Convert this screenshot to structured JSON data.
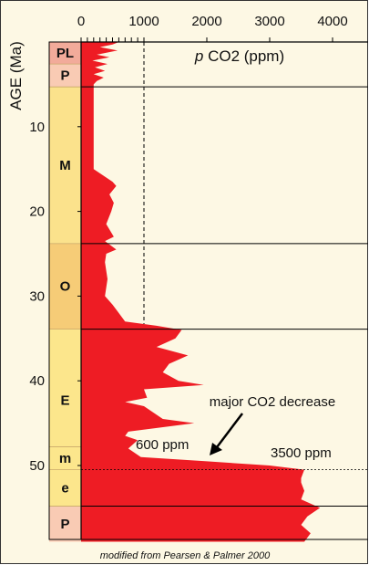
{
  "chart_data": {
    "type": "area",
    "orientation": "vertical-depth",
    "xlabel_prefix": "p",
    "xlabel": "CO2 (ppm)",
    "ylabel": "AGE (Ma)",
    "xlim": [
      0,
      4500
    ],
    "ylim": [
      0,
      59
    ],
    "x_ticks": [
      0,
      1000,
      2000,
      3000,
      4000
    ],
    "y_ticks": [
      10,
      20,
      30,
      40,
      50
    ],
    "grid": "none",
    "fill_color": "#ee1c24",
    "reference_line": {
      "x": 1000,
      "style": "dashed"
    },
    "series": [
      {
        "age": [
          0,
          0.3,
          0.6,
          1,
          1.5,
          1.8,
          2.2,
          2.6,
          3,
          3.4,
          3.8,
          4.2,
          4.6,
          5,
          5.3,
          15,
          16.5,
          17,
          18,
          19,
          20,
          21.5,
          23,
          23.5,
          24.5,
          25,
          26,
          27,
          28,
          30,
          31,
          33,
          33.5,
          34,
          35,
          36,
          37,
          38,
          39,
          40,
          40.5,
          41,
          42,
          42.5,
          43,
          44.5,
          45,
          46,
          46.5,
          47,
          48,
          49,
          49.5,
          50,
          50.5,
          51.5,
          52,
          53,
          54,
          55,
          56,
          57,
          58,
          59
        ],
        "co2": [
          600,
          500,
          300,
          580,
          250,
          450,
          180,
          420,
          220,
          380,
          200,
          360,
          250,
          200,
          200,
          200,
          500,
          560,
          450,
          520,
          480,
          400,
          520,
          380,
          560,
          400,
          380,
          400,
          420,
          380,
          500,
          700,
          1200,
          1600,
          1500,
          1200,
          1700,
          1400,
          1300,
          1550,
          1950,
          1000,
          1050,
          700,
          1000,
          1300,
          1800,
          750,
          700,
          900,
          750,
          950,
          2000,
          3000,
          3550,
          3500,
          3500,
          3550,
          3500,
          3800,
          3600,
          3500,
          3650,
          3550
        ]
      }
    ],
    "epochs": [
      {
        "label": "PL",
        "top": 0,
        "bottom": 2.6,
        "color": "#f2ab9a"
      },
      {
        "label": "P",
        "top": 2.6,
        "bottom": 5.3,
        "color": "#f9cbb4"
      },
      {
        "label": "M",
        "top": 5.3,
        "bottom": 23.8,
        "color": "#fbe28c"
      },
      {
        "label": "O",
        "top": 23.8,
        "bottom": 33.9,
        "color": "#f6cc77"
      },
      {
        "label": "E",
        "top": 33.9,
        "bottom": 47.8,
        "color": "#fce68c",
        "label_at": 42.3
      },
      {
        "label": "m",
        "top": 47.8,
        "bottom": 50.5,
        "color": "#fce68c"
      },
      {
        "label": "e",
        "top": 50.5,
        "bottom": 54.8,
        "color": "#fce68c"
      },
      {
        "label": "P",
        "top": 54.8,
        "bottom": 59,
        "color": "#f9cbb4"
      }
    ],
    "boundaries": [
      {
        "age": 5.3,
        "style": "solid"
      },
      {
        "age": 23.8,
        "style": "solid"
      },
      {
        "age": 33.9,
        "style": "solid"
      },
      {
        "age": 50.5,
        "style": "dashed"
      },
      {
        "age": 54.8,
        "style": "solid"
      }
    ],
    "annotations": {
      "main": "major CO2 decrease",
      "low_value": "600 ppm",
      "high_value": "3500 ppm"
    },
    "credit": "modified from Pearsen & Palmer 2000"
  }
}
